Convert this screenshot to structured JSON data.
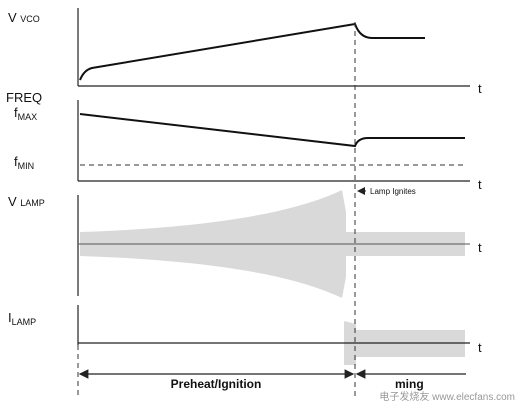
{
  "panels": [
    {
      "label": "V",
      "sub": "VCO",
      "axis": "t"
    },
    {
      "label": "FREQ",
      "axis": "t",
      "levels": [
        {
          "label": "f",
          "sub": "MAX"
        },
        {
          "label": "f",
          "sub": "MIN"
        }
      ]
    },
    {
      "label": "V",
      "sub": "LAMP",
      "axis": "t"
    },
    {
      "label": "I",
      "sub": "LAMP",
      "axis": "t"
    }
  ],
  "annotation": "Lamp Ignites",
  "phases": [
    "Preheat/Ignition",
    "ming"
  ],
  "watermark": "电子发烧友 www.elecfans.com"
}
